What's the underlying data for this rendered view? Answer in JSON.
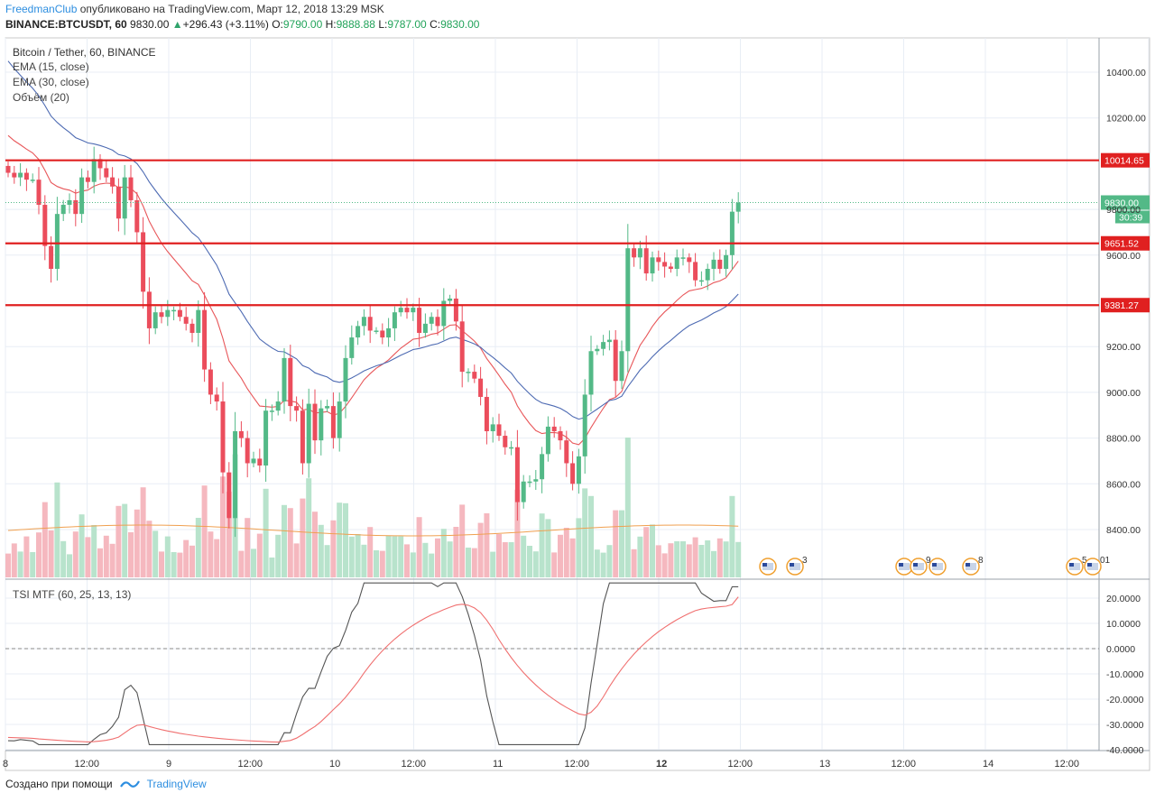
{
  "header": {
    "brand": "FreedmanClub",
    "published": " опубликовано на TradingView.com, Март 12, 2018 13:29 MSK",
    "symbol": "BINANCE:BTCUSDT, 60",
    "last": "9830.00",
    "arrow": "▲",
    "change": "+296.43 (+3.11%)",
    "o_label": "O:",
    "o_value": "9790.00",
    "h_label": "H:",
    "h_value": "9888.88",
    "l_label": "L:",
    "l_value": "9787.00",
    "c_label": "C:",
    "c_value": "9830.00"
  },
  "legend": {
    "title": "Bitcoin / Tether, 60, BINANCE",
    "ema15": "EMA (15, close)",
    "ema30": "EMA (30, close)",
    "volume": "Объём (20)",
    "tsi": "TSI MTF (60, 25, 13, 13)"
  },
  "footer": {
    "created_with": "Создано при помощи",
    "tv_label": "TradingView"
  },
  "colors": {
    "up": "#53b987",
    "down": "#eb4d5c",
    "ema15": "#e8575a",
    "ema30": "#4e6bb3",
    "hline": "#e02020",
    "grid": "#e8eef5",
    "vol_ma": "#f0a050",
    "tsi": "#555555",
    "tsi_signal": "#f07070",
    "last_tag": "#53b987"
  },
  "chart_data": {
    "type": "candlestick",
    "price_ticks": [
      "10400.00",
      "10200.00",
      "9800.00",
      "9600.00",
      "9200.00",
      "9000.00",
      "8800.00",
      "8600.00",
      "8400.00"
    ],
    "price_tick_values": [
      10400,
      10200,
      9800,
      9600,
      9200,
      9000,
      8800,
      8600,
      8400
    ],
    "x_ticks": [
      "8",
      "12:00",
      "9",
      "12:00",
      "10",
      "12:00",
      "11",
      "12:00",
      "12",
      "12:00",
      "13",
      "12:00",
      "14",
      "12:00"
    ],
    "horizontal_levels": [
      {
        "value": 10014.65,
        "label": "10014.65"
      },
      {
        "value": 9651.52,
        "label": "9651.52"
      },
      {
        "value": 9381.27,
        "label": "9381.27"
      }
    ],
    "last_price": {
      "value": 9830.0,
      "label": "9830.00",
      "countdown": "30:39"
    },
    "tsi_ticks": [
      "20.0000",
      "10.0000",
      "0.0000",
      "-10.0000",
      "-20.0000",
      "-30.0000",
      "-40.0000"
    ],
    "tsi_tick_values": [
      20,
      10,
      0,
      -10,
      -20,
      -30,
      -40
    ],
    "event_badges": [
      "3",
      "9",
      "8",
      "5",
      "0",
      "1"
    ],
    "candles_close": [
      9960,
      9940,
      9960,
      9930,
      9930,
      9820,
      9640,
      9540,
      9780,
      9820,
      9840,
      9780,
      9940,
      9920,
      10020,
      9980,
      9940,
      9900,
      9760,
      9940,
      9840,
      9700,
      9440,
      9280,
      9350,
      9330,
      9360,
      9360,
      9330,
      9300,
      9260,
      9360,
      9100,
      8990,
      8960,
      8650,
      8450,
      8830,
      8800,
      8690,
      8710,
      8680,
      8920,
      8920,
      8960,
      9150,
      8940,
      8920,
      8690,
      8950,
      8790,
      8930,
      8940,
      8800,
      8960,
      9150,
      9240,
      9290,
      9330,
      9270,
      9270,
      9240,
      9280,
      9350,
      9370,
      9350,
      9370,
      9260,
      9300,
      9330,
      9290,
      9400,
      9410,
      9310,
      9090,
      9090,
      9060,
      8980,
      8830,
      8860,
      8810,
      8760,
      8760,
      8520,
      8610,
      8610,
      8620,
      8730,
      8850,
      8830,
      8790,
      8690,
      8600,
      8720,
      8990,
      9180,
      9190,
      9220,
      9230,
      9050,
      9180,
      9630,
      9590,
      9630,
      9520,
      9590,
      9570,
      9550,
      9540,
      9590,
      9590,
      9570,
      9490,
      9490,
      9540,
      9580,
      9540,
      9600,
      9790,
      9830
    ],
    "ema15_last": 9560,
    "ema30_last": 9420,
    "tsi_last": 24.5,
    "tsi_signal_last": 20.5
  }
}
